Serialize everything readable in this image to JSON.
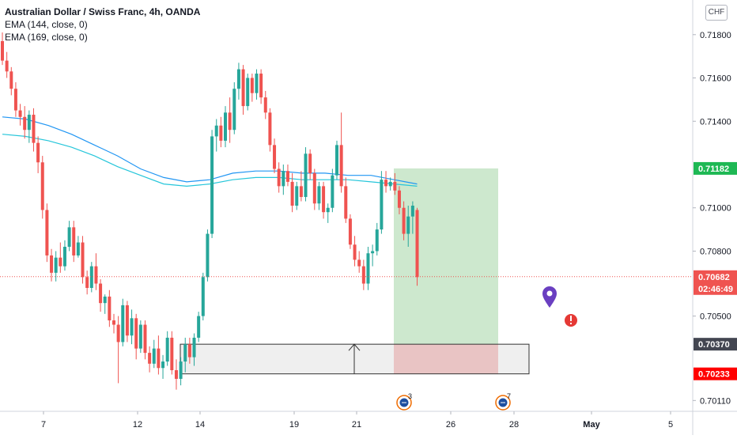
{
  "header": {
    "title": "Australian Dollar / Swiss Franc, 4h, OANDA",
    "indicators": [
      "EMA (144, close, 0)",
      "EMA (169, close, 0)"
    ]
  },
  "currency_badge": "CHF",
  "colors": {
    "up": "#26a69a",
    "down": "#ef5350",
    "ema144": "#2196f3",
    "ema169": "#26c6da",
    "profit_zone": "#c8e6c9",
    "loss_zone": "#f5b7b7",
    "price_line": "#ef5350"
  },
  "price_axis": {
    "ticks": [
      "0.71800",
      "0.71600",
      "0.71400",
      "0.71000",
      "0.70800",
      "0.70500",
      "0.70110"
    ],
    "tags": [
      {
        "label": "0.71182",
        "value": 0.71182,
        "bg": "#1eb854",
        "color": "#ffffff"
      },
      {
        "label": "0.70682",
        "value": 0.70682,
        "bg": "#ef5350",
        "color": "#ffffff"
      },
      {
        "label": "02:46:49",
        "value": 0.70682,
        "bg": "#ef5350",
        "color": "#ffffff",
        "sub": true
      },
      {
        "label": "0.70370",
        "value": 0.7037,
        "bg": "#434651",
        "color": "#ffffff"
      },
      {
        "label": "0.70233",
        "value": 0.70233,
        "bg": "#ff0000",
        "color": "#ffffff"
      }
    ]
  },
  "time_axis": {
    "labels": [
      "7",
      "12",
      "14",
      "19",
      "21",
      "26",
      "28",
      "May",
      "5"
    ]
  },
  "events": [
    {
      "count": "3"
    },
    {
      "count": "7"
    }
  ],
  "chart_data": {
    "type": "candlestick",
    "title": "Australian Dollar / Swiss Franc, 4h, OANDA",
    "timeframe": "4h",
    "x_tick_labels": [
      "7",
      "12",
      "14",
      "19",
      "21",
      "26",
      "28",
      "May",
      "5"
    ],
    "y_tick_labels": [
      "0.71800",
      "0.71600",
      "0.71400",
      "0.71000",
      "0.70800",
      "0.70500",
      "0.70110"
    ],
    "ylim": [
      0.7006,
      0.7196
    ],
    "series": [
      {
        "name": "EMA (144, close, 0)",
        "type": "line"
      },
      {
        "name": "EMA (169, close, 0)",
        "type": "line"
      }
    ],
    "ema144": [
      0.7142,
      0.7141,
      0.7138,
      0.7134,
      0.7129,
      0.7124,
      0.7118,
      0.7114,
      0.7112,
      0.7113,
      0.7116,
      0.7117,
      0.7117,
      0.7116,
      0.7116,
      0.7115,
      0.7115,
      0.7113,
      0.7111
    ],
    "ema169": [
      0.7134,
      0.7133,
      0.7131,
      0.7128,
      0.7124,
      0.7119,
      0.7115,
      0.7111,
      0.711,
      0.7111,
      0.7113,
      0.7114,
      0.7114,
      0.7113,
      0.7113,
      0.7113,
      0.7112,
      0.7111,
      0.711
    ],
    "candles": [
      [
        0.7177,
        0.7181,
        0.7166,
        0.7168
      ],
      [
        0.7168,
        0.7172,
        0.716,
        0.7163
      ],
      [
        0.7163,
        0.7165,
        0.7152,
        0.7155
      ],
      [
        0.7155,
        0.7158,
        0.7142,
        0.7145
      ],
      [
        0.7145,
        0.7148,
        0.7138,
        0.7142
      ],
      [
        0.7142,
        0.7147,
        0.7132,
        0.7136
      ],
      [
        0.7136,
        0.7145,
        0.713,
        0.7143
      ],
      [
        0.7143,
        0.7146,
        0.7126,
        0.713
      ],
      [
        0.713,
        0.7133,
        0.7116,
        0.7121
      ],
      [
        0.7121,
        0.7124,
        0.7095,
        0.7099
      ],
      [
        0.7099,
        0.7102,
        0.7075,
        0.7078
      ],
      [
        0.7078,
        0.7081,
        0.7066,
        0.707
      ],
      [
        0.707,
        0.708,
        0.7066,
        0.7077
      ],
      [
        0.7077,
        0.7084,
        0.707,
        0.7073
      ],
      [
        0.7073,
        0.7085,
        0.7071,
        0.7082
      ],
      [
        0.7082,
        0.7094,
        0.708,
        0.7091
      ],
      [
        0.7091,
        0.7094,
        0.7075,
        0.7078
      ],
      [
        0.7078,
        0.7087,
        0.7077,
        0.7084
      ],
      [
        0.7084,
        0.7087,
        0.7065,
        0.7068
      ],
      [
        0.7068,
        0.7071,
        0.706,
        0.7063
      ],
      [
        0.7063,
        0.7075,
        0.7061,
        0.7073
      ],
      [
        0.7073,
        0.7079,
        0.7062,
        0.7065
      ],
      [
        0.7065,
        0.7067,
        0.7052,
        0.7056
      ],
      [
        0.7056,
        0.706,
        0.7051,
        0.7059
      ],
      [
        0.7059,
        0.7062,
        0.7045,
        0.7048
      ],
      [
        0.7048,
        0.7051,
        0.7042,
        0.7046
      ],
      [
        0.7046,
        0.705,
        0.7019,
        0.7038
      ],
      [
        0.7038,
        0.7058,
        0.7036,
        0.7055
      ],
      [
        0.7055,
        0.7057,
        0.7038,
        0.7041
      ],
      [
        0.7041,
        0.7053,
        0.7037,
        0.7049
      ],
      [
        0.7049,
        0.7051,
        0.703,
        0.7035
      ],
      [
        0.7035,
        0.7048,
        0.7033,
        0.7046
      ],
      [
        0.7046,
        0.7048,
        0.703,
        0.7033
      ],
      [
        0.7033,
        0.7036,
        0.7024,
        0.7028
      ],
      [
        0.7028,
        0.7039,
        0.7026,
        0.7035
      ],
      [
        0.7035,
        0.7041,
        0.7023,
        0.7026
      ],
      [
        0.7026,
        0.7032,
        0.7021,
        0.7029
      ],
      [
        0.7029,
        0.7043,
        0.7027,
        0.704
      ],
      [
        0.704,
        0.7043,
        0.7023,
        0.7025
      ],
      [
        0.7025,
        0.703,
        0.7016,
        0.7021
      ],
      [
        0.7021,
        0.7031,
        0.7018,
        0.7029
      ],
      [
        0.7029,
        0.704,
        0.7024,
        0.7037
      ],
      [
        0.7037,
        0.704,
        0.7028,
        0.7031
      ],
      [
        0.7031,
        0.7042,
        0.7027,
        0.704
      ],
      [
        0.704,
        0.7052,
        0.7038,
        0.705
      ],
      [
        0.705,
        0.707,
        0.7048,
        0.7068
      ],
      [
        0.7068,
        0.709,
        0.7066,
        0.7088
      ],
      [
        0.7088,
        0.7136,
        0.7086,
        0.7133
      ],
      [
        0.7133,
        0.7141,
        0.7126,
        0.7138
      ],
      [
        0.7138,
        0.7142,
        0.7128,
        0.7131
      ],
      [
        0.7131,
        0.7147,
        0.7128,
        0.7144
      ],
      [
        0.7144,
        0.7151,
        0.713,
        0.7136
      ],
      [
        0.7136,
        0.7158,
        0.7134,
        0.7155
      ],
      [
        0.7155,
        0.7167,
        0.715,
        0.7164
      ],
      [
        0.7164,
        0.7166,
        0.7143,
        0.7147
      ],
      [
        0.7147,
        0.7162,
        0.7145,
        0.716
      ],
      [
        0.716,
        0.7162,
        0.7149,
        0.7153
      ],
      [
        0.7153,
        0.7164,
        0.715,
        0.7162
      ],
      [
        0.7162,
        0.7164,
        0.7148,
        0.7151
      ],
      [
        0.7151,
        0.7154,
        0.7141,
        0.7144
      ],
      [
        0.7144,
        0.7146,
        0.7126,
        0.7129
      ],
      [
        0.7129,
        0.7132,
        0.7116,
        0.7118
      ],
      [
        0.7118,
        0.7121,
        0.7107,
        0.711
      ],
      [
        0.711,
        0.712,
        0.7106,
        0.7117
      ],
      [
        0.7117,
        0.712,
        0.711,
        0.7112
      ],
      [
        0.7112,
        0.7116,
        0.7098,
        0.7101
      ],
      [
        0.7101,
        0.7112,
        0.7099,
        0.711
      ],
      [
        0.711,
        0.7117,
        0.7103,
        0.7105
      ],
      [
        0.7105,
        0.7128,
        0.7103,
        0.7125
      ],
      [
        0.7125,
        0.7127,
        0.7113,
        0.7116
      ],
      [
        0.7116,
        0.7118,
        0.7099,
        0.7102
      ],
      [
        0.7102,
        0.7112,
        0.7099,
        0.711
      ],
      [
        0.711,
        0.7112,
        0.7095,
        0.7098
      ],
      [
        0.7098,
        0.7102,
        0.7093,
        0.71
      ],
      [
        0.71,
        0.7118,
        0.7098,
        0.7115
      ],
      [
        0.7115,
        0.7131,
        0.7113,
        0.7129
      ],
      [
        0.7129,
        0.7144,
        0.7107,
        0.711
      ],
      [
        0.711,
        0.7114,
        0.7093,
        0.7095
      ],
      [
        0.7095,
        0.7097,
        0.7081,
        0.7083
      ],
      [
        0.7083,
        0.7087,
        0.7073,
        0.7076
      ],
      [
        0.7076,
        0.708,
        0.707,
        0.7073
      ],
      [
        0.7073,
        0.7076,
        0.7062,
        0.7065
      ],
      [
        0.7065,
        0.7082,
        0.7062,
        0.7079
      ],
      [
        0.7079,
        0.7083,
        0.7073,
        0.708
      ],
      [
        0.708,
        0.7093,
        0.7078,
        0.709
      ],
      [
        0.709,
        0.7117,
        0.7088,
        0.7113
      ],
      [
        0.7113,
        0.7117,
        0.7107,
        0.711
      ],
      [
        0.711,
        0.7114,
        0.7108,
        0.7112
      ],
      [
        0.7112,
        0.7116,
        0.7106,
        0.7108
      ],
      [
        0.7108,
        0.711,
        0.7097,
        0.71
      ],
      [
        0.71,
        0.7103,
        0.7085,
        0.7088
      ],
      [
        0.7088,
        0.7101,
        0.7082,
        0.7096
      ],
      [
        0.7096,
        0.7103,
        0.7088,
        0.7101
      ],
      [
        0.7099,
        0.71,
        0.7064,
        0.7068
      ]
    ],
    "price_line": 0.70682,
    "position": {
      "entry": 0.7037,
      "stop": 0.70233,
      "target": 0.71182
    }
  }
}
